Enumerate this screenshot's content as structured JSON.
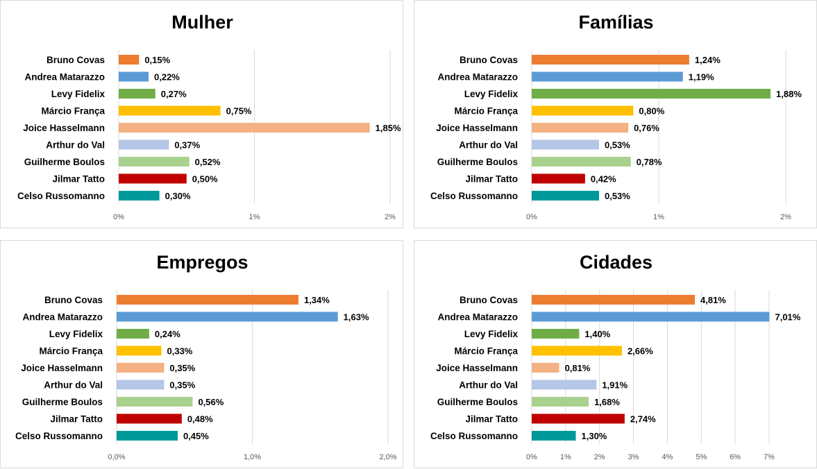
{
  "chart_data": [
    {
      "type": "bar",
      "orientation": "horizontal",
      "title": "Mulher",
      "categories": [
        "Bruno Covas",
        "Andrea Matarazzo",
        "Levy Fidelix",
        "Márcio França",
        "Joice Hasselmann",
        "Arthur do Val",
        "Guilherme Boulos",
        "Jilmar Tatto",
        "Celso Russomanno"
      ],
      "values": [
        0.15,
        0.22,
        0.27,
        0.75,
        1.85,
        0.37,
        0.52,
        0.5,
        0.3
      ],
      "value_labels": [
        "0,15%",
        "0,22%",
        "0,27%",
        "0,75%",
        "1,85%",
        "0,37%",
        "0,52%",
        "0,50%",
        "0,30%"
      ],
      "xlim": [
        0,
        2
      ],
      "ticks": [
        0,
        1,
        2
      ],
      "tick_labels": [
        "0%",
        "1%",
        "2%"
      ],
      "grid": true
    },
    {
      "type": "bar",
      "orientation": "horizontal",
      "title": "Famílias",
      "categories": [
        "Bruno Covas",
        "Andrea Matarazzo",
        "Levy Fidelix",
        "Márcio França",
        "Joice Hasselmann",
        "Arthur do Val",
        "Guilherme Boulos",
        "Jilmar Tatto",
        "Celso Russomanno"
      ],
      "values": [
        1.24,
        1.19,
        1.88,
        0.8,
        0.76,
        0.53,
        0.78,
        0.42,
        0.53
      ],
      "value_labels": [
        "1,24%",
        "1,19%",
        "1,88%",
        "0,80%",
        "0,76%",
        "0,53%",
        "0,78%",
        "0,42%",
        "0,53%"
      ],
      "xlim": [
        0,
        2
      ],
      "ticks": [
        0,
        1,
        2
      ],
      "tick_labels": [
        "0%",
        "1%",
        "2%"
      ],
      "grid": true
    },
    {
      "type": "bar",
      "orientation": "horizontal",
      "title": "Empregos",
      "categories": [
        "Bruno Covas",
        "Andrea Matarazzo",
        "Levy Fidelix",
        "Márcio França",
        "Joice Hasselmann",
        "Arthur do Val",
        "Guilherme Boulos",
        "Jilmar Tatto",
        "Celso Russomanno"
      ],
      "values": [
        1.34,
        1.63,
        0.24,
        0.33,
        0.35,
        0.35,
        0.56,
        0.48,
        0.45
      ],
      "value_labels": [
        "1,34%",
        "1,63%",
        "0,24%",
        "0,33%",
        "0,35%",
        "0,35%",
        "0,56%",
        "0,48%",
        "0,45%"
      ],
      "xlim": [
        0,
        2
      ],
      "ticks": [
        0,
        1,
        2
      ],
      "tick_labels": [
        "0,0%",
        "1,0%",
        "2,0%"
      ],
      "grid": true
    },
    {
      "type": "bar",
      "orientation": "horizontal",
      "title": "Cidades",
      "categories": [
        "Bruno Covas",
        "Andrea Matarazzo",
        "Levy Fidelix",
        "Márcio França",
        "Joice Hasselmann",
        "Arthur do Val",
        "Guilherme Boulos",
        "Jilmar Tatto",
        "Celso Russomanno"
      ],
      "values": [
        4.81,
        7.01,
        1.4,
        2.66,
        0.81,
        1.91,
        1.68,
        2.74,
        1.3
      ],
      "value_labels": [
        "4,81%",
        "7,01%",
        "1,40%",
        "2,66%",
        "0,81%",
        "1,91%",
        "1,68%",
        "2,74%",
        "1,30%"
      ],
      "xlim": [
        0,
        7
      ],
      "ticks": [
        0,
        1,
        2,
        3,
        4,
        5,
        6,
        7
      ],
      "tick_labels": [
        "0%",
        "1%",
        "2%",
        "3%",
        "4%",
        "5%",
        "6%",
        "7%"
      ],
      "grid": true
    }
  ],
  "bar_colors": [
    "#ED7D31",
    "#5B9BD5",
    "#70AD47",
    "#FFC000",
    "#F4B183",
    "#B4C7E7",
    "#A9D18E",
    "#C00000",
    "#009999"
  ]
}
